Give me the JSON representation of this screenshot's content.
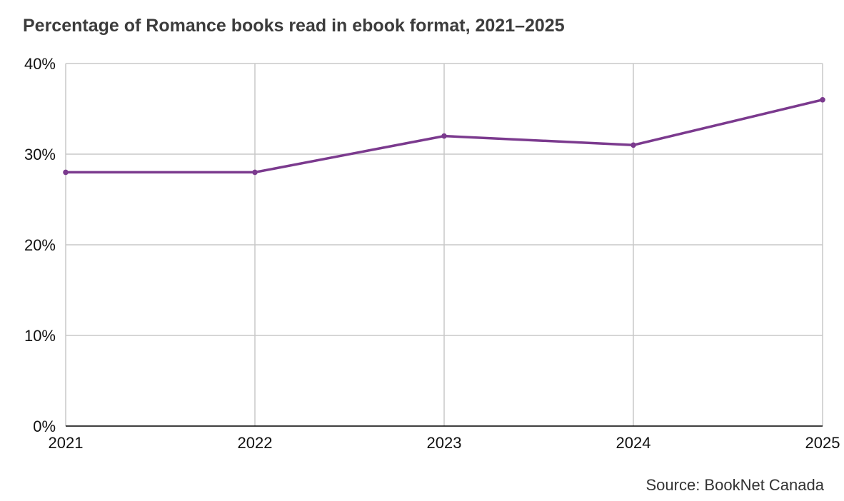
{
  "colors": {
    "series": "#7b3a8e",
    "grid": "#c8c8c8",
    "axis": "#000000",
    "title": "#3c3c3c"
  },
  "chart_data": {
    "type": "line",
    "title": "Percentage of Romance books read in ebook format, 2021–2025",
    "xlabel": "",
    "ylabel": "",
    "x": [
      "2021",
      "2022",
      "2023",
      "2024",
      "2025"
    ],
    "series": [
      {
        "values": [
          28,
          28,
          32,
          31,
          36
        ]
      }
    ],
    "ylim": [
      0,
      40
    ],
    "y_ticks": [
      0,
      10,
      20,
      30,
      40
    ],
    "y_tick_labels": [
      "0%",
      "10%",
      "20%",
      "30%",
      "40%"
    ],
    "x_tick_labels": [
      "2021",
      "2022",
      "2023",
      "2024",
      "2025"
    ],
    "grid": true,
    "source": "Source: BookNet Canada"
  }
}
